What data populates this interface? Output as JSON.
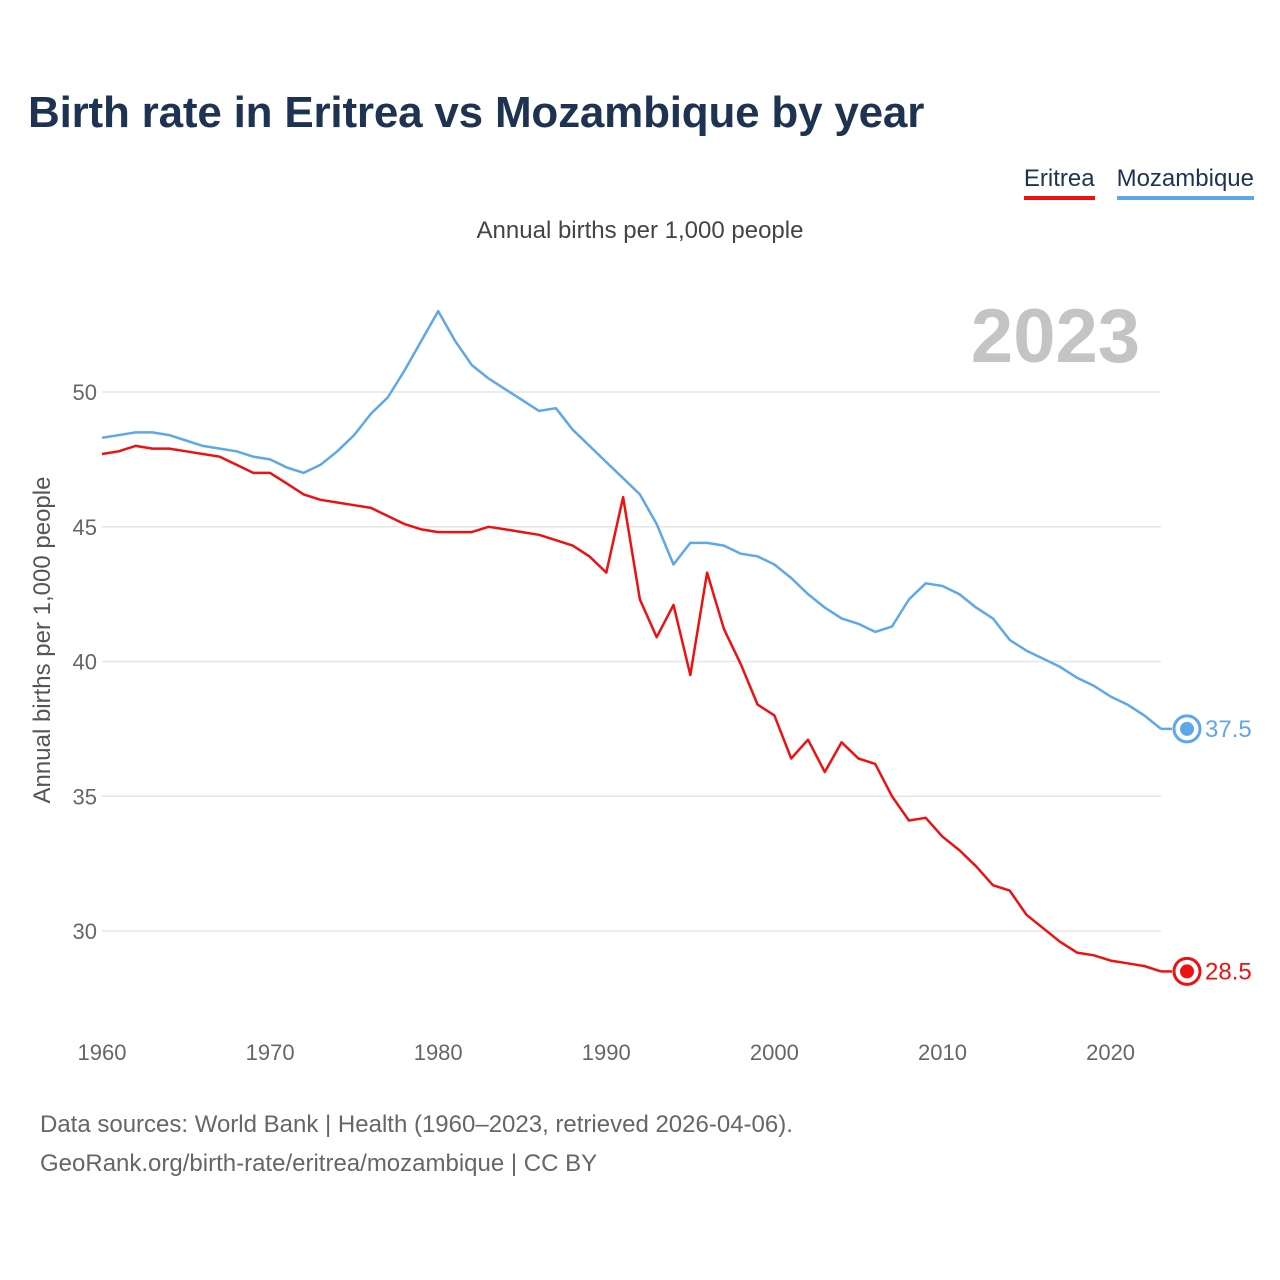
{
  "title": "Birth rate in Eritrea vs Mozambique by year",
  "legend": [
    {
      "name": "Eritrea",
      "color": "#ee1111"
    },
    {
      "name": "Mozambique",
      "color": "#5fa8e8"
    }
  ],
  "subtitle": "Annual births per 1,000 people",
  "footer": {
    "line1": "Data sources: World Bank | Health (1960–2023, retrieved 2026-04-06).",
    "line2": "GeoRank.org/birth-rate/eritrea/mozambique | CC BY"
  },
  "chart_data": {
    "type": "line",
    "title": "Birth rate in Eritrea vs Mozambique by year",
    "subtitle": "Annual births per 1,000 people",
    "xlabel": "",
    "ylabel": "Annual births per 1,000 people",
    "current_year_label": "2023",
    "xlim": [
      1960,
      2023
    ],
    "ylim": [
      27,
      54
    ],
    "xticks": [
      1960,
      1970,
      1980,
      1990,
      2000,
      2010,
      2020
    ],
    "yticks": [
      30,
      35,
      40,
      45,
      50
    ],
    "grid": true,
    "legend_position": "top-right",
    "x": [
      1960,
      1961,
      1962,
      1963,
      1964,
      1965,
      1966,
      1967,
      1968,
      1969,
      1970,
      1971,
      1972,
      1973,
      1974,
      1975,
      1976,
      1977,
      1978,
      1979,
      1980,
      1981,
      1982,
      1983,
      1984,
      1985,
      1986,
      1987,
      1988,
      1989,
      1990,
      1991,
      1992,
      1993,
      1994,
      1995,
      1996,
      1997,
      1998,
      1999,
      2000,
      2001,
      2002,
      2003,
      2004,
      2005,
      2006,
      2007,
      2008,
      2009,
      2010,
      2011,
      2012,
      2013,
      2014,
      2015,
      2016,
      2017,
      2018,
      2019,
      2020,
      2021,
      2022,
      2023
    ],
    "series": [
      {
        "name": "Eritrea",
        "color": "#ee1111",
        "end_label": "28.5",
        "values": [
          47.7,
          47.8,
          48.0,
          47.9,
          47.9,
          47.8,
          47.7,
          47.6,
          47.3,
          47.0,
          47.0,
          46.6,
          46.2,
          46.0,
          45.9,
          45.8,
          45.7,
          45.4,
          45.1,
          44.9,
          44.8,
          44.8,
          44.8,
          45.0,
          44.9,
          44.8,
          44.7,
          44.5,
          44.3,
          43.9,
          43.3,
          46.1,
          42.3,
          40.9,
          42.1,
          39.5,
          43.3,
          41.2,
          39.9,
          38.4,
          38.0,
          36.4,
          37.1,
          35.9,
          37.0,
          36.4,
          36.2,
          35.0,
          34.1,
          34.2,
          33.5,
          33.0,
          32.4,
          31.7,
          31.5,
          30.6,
          30.1,
          29.6,
          29.2,
          29.1,
          28.9,
          28.8,
          28.7,
          28.5
        ]
      },
      {
        "name": "Mozambique",
        "color": "#5fa8e8",
        "end_label": "37.5",
        "values": [
          48.3,
          48.4,
          48.5,
          48.5,
          48.4,
          48.2,
          48.0,
          47.9,
          47.8,
          47.6,
          47.5,
          47.2,
          47.0,
          47.3,
          47.8,
          48.4,
          49.2,
          49.8,
          50.8,
          51.9,
          53.0,
          51.9,
          51.0,
          50.5,
          50.1,
          49.7,
          49.3,
          49.4,
          48.6,
          48.0,
          47.4,
          46.8,
          46.2,
          45.1,
          43.6,
          44.4,
          44.4,
          44.3,
          44.0,
          43.9,
          43.6,
          43.1,
          42.5,
          42.0,
          41.6,
          41.4,
          41.1,
          41.3,
          42.3,
          42.9,
          42.8,
          42.5,
          42.0,
          41.6,
          40.8,
          40.4,
          40.1,
          39.8,
          39.4,
          39.1,
          38.7,
          38.4,
          38.0,
          37.5
        ]
      }
    ]
  }
}
